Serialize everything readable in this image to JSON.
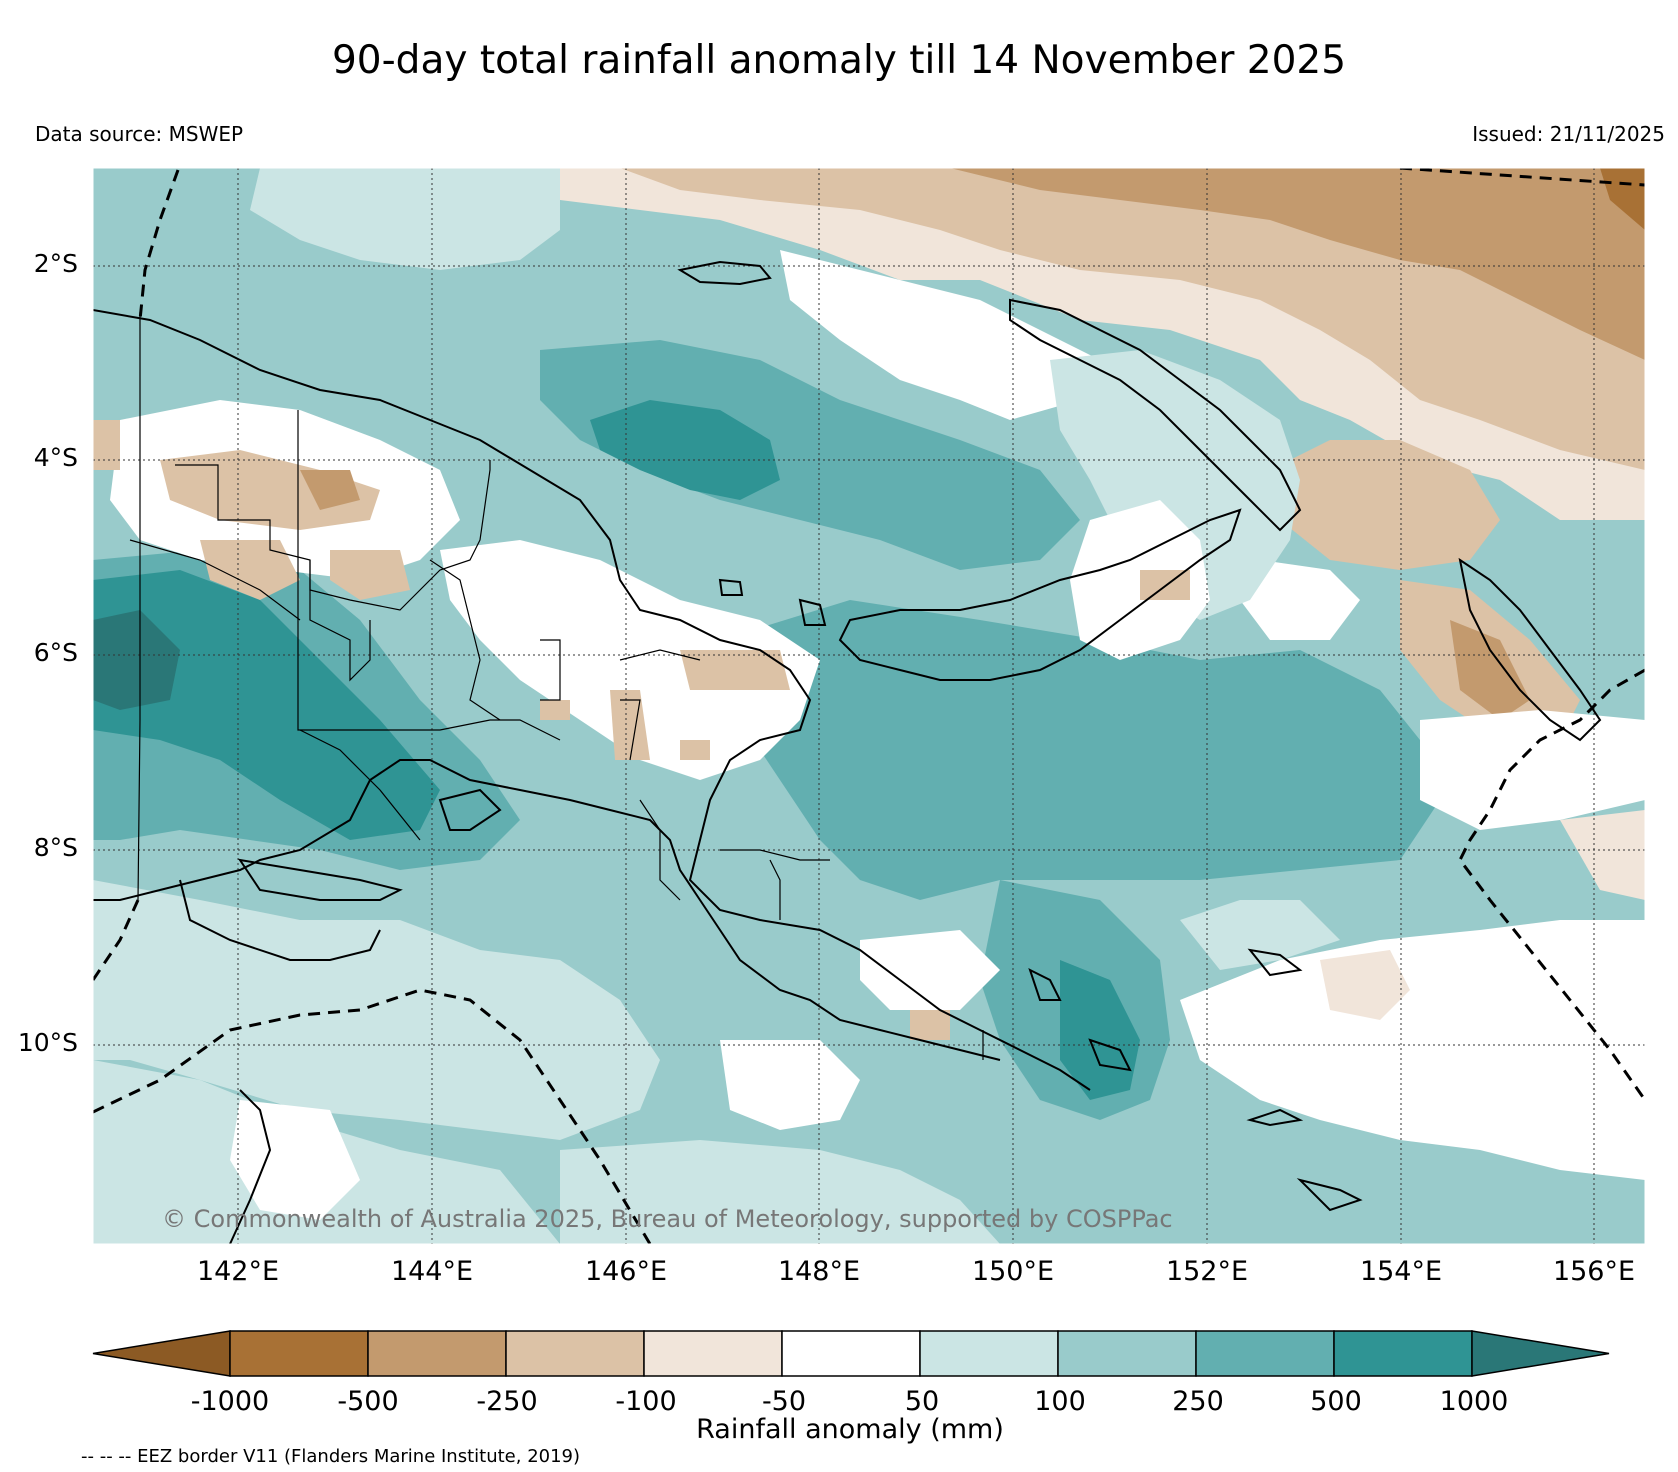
{
  "title": "90-day total rainfall anomaly till 14 November 2025",
  "data_source": "Data source: MSWEP",
  "issued": "Issued: 21/11/2025",
  "copyright": "© Commonwealth of Australia 2025, Bureau of Meteorology, supported by COSPPac",
  "lat_labels": [
    "2°S",
    "4°S",
    "6°S",
    "8°S",
    "10°S"
  ],
  "lon_labels": [
    "142°E",
    "144°E",
    "146°E",
    "148°E",
    "150°E",
    "152°E",
    "154°E",
    "156°E"
  ],
  "colorbar": {
    "title": "Rainfall anomaly (mm)",
    "ticks": [
      "-1000",
      "-500",
      "-250",
      "-100",
      "-50",
      "50",
      "100",
      "250",
      "500",
      "1000"
    ],
    "colors": [
      "#8c5a24",
      "#a87135",
      "#c39a6e",
      "#dcc2a6",
      "#f1e5da",
      "#ffffff",
      "#cbe5e4",
      "#99cbcb",
      "#62afb0",
      "#2f9494",
      "#2a7777"
    ]
  },
  "eez_note": "-- -- -- EEZ border V11 (Flanders Marine Institute, 2019)"
}
